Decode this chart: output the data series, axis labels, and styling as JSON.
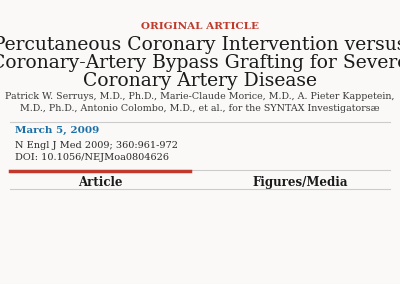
{
  "background_color": "#faf9f7",
  "original_article_text": "ORIGINAL ARTICLE",
  "original_article_color": "#c0392b",
  "original_article_fontsize": 7.5,
  "title_line1": "Percutaneous Coronary Intervention versus",
  "title_line2": "Coronary-Artery Bypass Grafting for Severe",
  "title_line3": "Coronary Artery Disease",
  "title_color": "#1a1a1a",
  "title_fontsize": 13.5,
  "authors_line1": "Patrick W. Serruys, M.D., Ph.D., Marie-Claude Morice, M.D., A. Pieter Kappetein,",
  "authors_line2": "M.D., Ph.D., Antonio Colombo, M.D., et al., for the SYNTAX Investigatorsæ",
  "authors_color": "#3a3a3a",
  "authors_fontsize": 6.8,
  "separator_color": "#cccccc",
  "date_text": "March 5, 2009",
  "date_color": "#1a6fa8",
  "date_fontsize": 7.5,
  "journal_text": "N Engl J Med 2009; 360:961-972",
  "doi_text": "DOI: 10.1056/NEJMoa0804626",
  "journal_doi_color": "#2a2a2a",
  "journal_doi_fontsize": 7.0,
  "tab1_text": "Article",
  "tab2_text": "Figures/Media",
  "tab_fontsize": 8.5,
  "tab_color": "#1a1a1a",
  "tab_underline_color": "#c0392b",
  "tab_separator_color": "#cccccc"
}
